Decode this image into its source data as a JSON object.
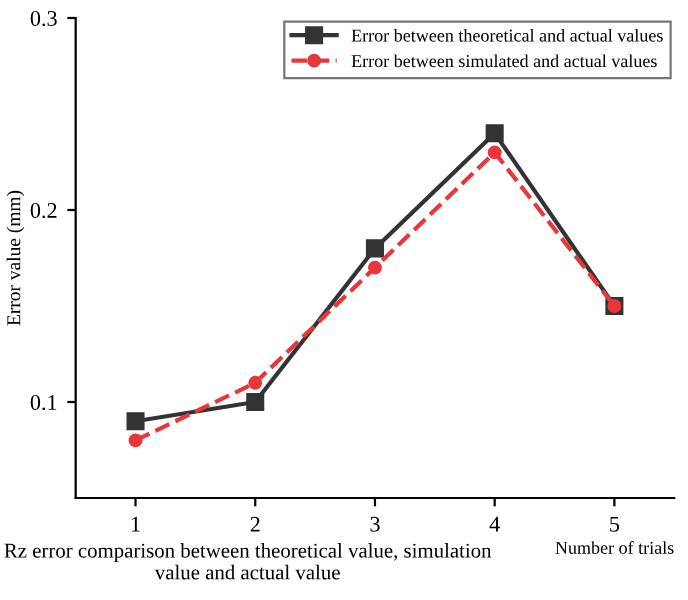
{
  "chart_data": {
    "type": "line",
    "xlabel": "Number of trials",
    "ylabel": "Error value (mm)",
    "annotations": [
      "Rz error comparison between theoretical value, simulation value and actual value"
    ],
    "x": [
      1,
      2,
      3,
      4,
      5
    ],
    "xlim": [
      0.5,
      5.5
    ],
    "xticks": [
      1,
      2,
      3,
      4,
      5
    ],
    "ylim": [
      0.05,
      0.3
    ],
    "yticks": [
      0.1,
      0.2,
      0.3
    ],
    "series": [
      {
        "name": "Error between theoretical and actual values",
        "color": "#333333",
        "marker": "square",
        "line_style": "solid",
        "values": [
          0.09,
          0.1,
          0.18,
          0.24,
          0.15
        ]
      },
      {
        "name": "Error between simulated and actual values",
        "color": "#e8363b",
        "marker": "circle",
        "line_style": "dashed",
        "values": [
          0.08,
          0.11,
          0.17,
          0.23,
          0.15
        ]
      }
    ],
    "legend": "top right",
    "grid": false
  }
}
